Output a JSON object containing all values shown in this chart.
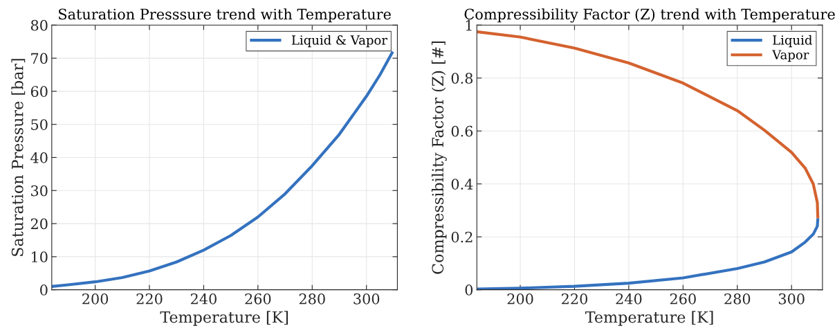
{
  "chart_data": [
    {
      "type": "line",
      "title": "Saturation Presssure trend with Temperature",
      "xlabel": "Temperature [K]",
      "ylabel": "Saturation Pressure [bar]",
      "xlim": [
        184,
        311.4
      ],
      "xticks": [
        200,
        220,
        240,
        260,
        280,
        300
      ],
      "ylim": [
        0,
        80
      ],
      "yticks": [
        0,
        10,
        20,
        30,
        40,
        50,
        60,
        70,
        80
      ],
      "grid": true,
      "legend": "top right",
      "series": [
        {
          "name": "Liquid & Vapor",
          "color": "#3472bf",
          "x": [
            184,
            190,
            200,
            210,
            220,
            230,
            240,
            250,
            260,
            270,
            280,
            290,
            300,
            305,
            309.7
          ],
          "values": [
            1.0,
            1.5,
            2.4,
            3.7,
            5.7,
            8.4,
            12,
            16.4,
            22,
            29,
            37.5,
            47,
            58.5,
            65,
            72
          ]
        }
      ]
    },
    {
      "type": "line",
      "title": "Compressibility Factor (Z) trend with Temperature",
      "xlabel": "Temperature [K]",
      "ylabel": "Compressibility Factor (Z) [#]",
      "xlim": [
        184,
        311.4
      ],
      "xticks": [
        200,
        220,
        240,
        260,
        280,
        300
      ],
      "ylim": [
        0,
        1
      ],
      "yticks": [
        0,
        0.2,
        0.4,
        0.6,
        0.8,
        1
      ],
      "grid": true,
      "legend": "top right",
      "series": [
        {
          "name": "Liquid",
          "color": "#3472bf",
          "x": [
            184,
            200,
            220,
            240,
            260,
            280,
            290,
            300,
            305,
            308,
            309.5,
            309.7
          ],
          "values": [
            0.003,
            0.006,
            0.013,
            0.025,
            0.045,
            0.08,
            0.105,
            0.143,
            0.18,
            0.21,
            0.24,
            0.27
          ]
        },
        {
          "name": "Vapor",
          "color": "#d4622f",
          "x": [
            184,
            200,
            220,
            240,
            260,
            280,
            290,
            300,
            305,
            308,
            309.5,
            309.7
          ],
          "values": [
            0.975,
            0.955,
            0.913,
            0.857,
            0.781,
            0.677,
            0.603,
            0.519,
            0.46,
            0.4,
            0.33,
            0.27
          ]
        }
      ]
    }
  ]
}
